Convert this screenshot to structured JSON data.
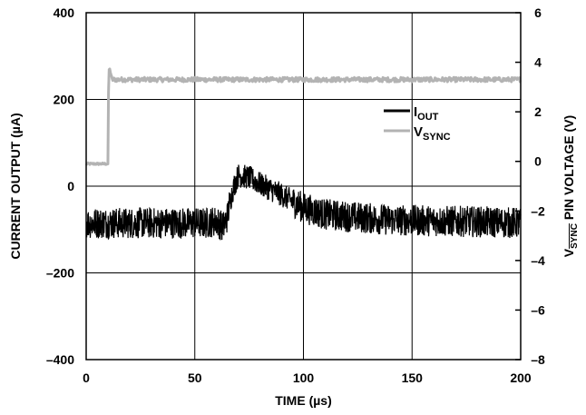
{
  "chart_data": {
    "type": "line",
    "xlabel": "TIME (µs)",
    "ylabel_left": "CURRENT OUTPUT (µA)",
    "ylabel_right": {
      "prefix": "V",
      "subscript": "SYNC",
      "suffix": " PIN VOLTAGE (V)"
    },
    "xlim": [
      0,
      200
    ],
    "ylim_left": [
      -400,
      400
    ],
    "ylim_right": [
      -8,
      6
    ],
    "x_ticks": [
      "0",
      "50",
      "100",
      "150",
      "200"
    ],
    "y_left_ticks": [
      "400",
      "200",
      "0",
      "–200",
      "–400"
    ],
    "y_right_ticks": [
      "6",
      "4",
      "2",
      "0",
      "–2",
      "–4",
      "–6",
      "–8"
    ],
    "grid": true,
    "legend_position": "upper-right",
    "series": [
      {
        "name": {
          "main": "I",
          "sub": "OUT"
        },
        "axis": "left",
        "color": "#000000",
        "x": [
          0,
          20,
          40,
          55,
          60,
          63,
          65,
          66,
          68,
          70,
          75,
          80,
          90,
          100,
          110,
          120,
          140,
          160,
          180,
          200
        ],
        "y": [
          -85,
          -85,
          -85,
          -85,
          -80,
          -95,
          -70,
          -40,
          0,
          25,
          20,
          5,
          -20,
          -50,
          -65,
          -70,
          -78,
          -80,
          -82,
          -85
        ]
      },
      {
        "name": {
          "main": "V",
          "sub": "SYNC"
        },
        "axis": "right",
        "color": "#b3b3b3",
        "x": [
          0,
          10,
          10.2,
          10.6,
          12,
          50,
          100,
          150,
          200
        ],
        "y": [
          -0.1,
          -0.1,
          2.5,
          3.8,
          3.3,
          3.3,
          3.3,
          3.3,
          3.3
        ]
      }
    ]
  }
}
